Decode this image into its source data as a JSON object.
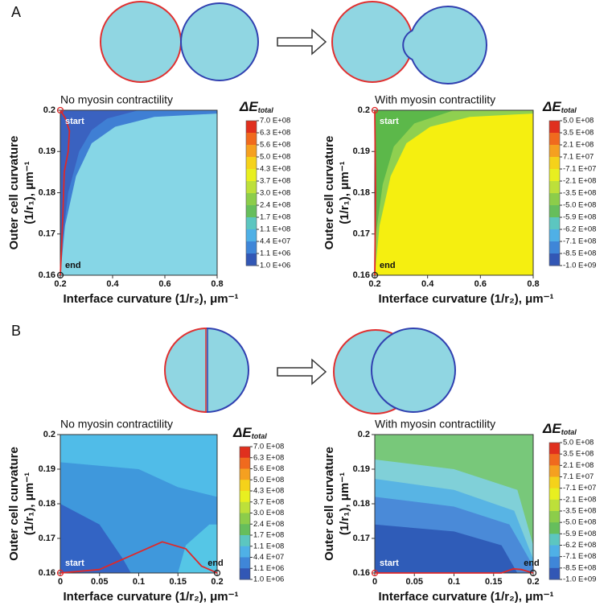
{
  "panel_labels": [
    "A",
    "B"
  ],
  "chart_data": [
    {
      "type": "contour",
      "title": "No myosin contractility",
      "xlabel": "Interface curvature (1/r₂), μm⁻¹",
      "ylabel": [
        "Outer cell curvature",
        "(1/r₁), μm⁻¹"
      ],
      "xlim": [
        0.2,
        0.8
      ],
      "xticks": [
        0.2,
        0.4,
        0.6,
        0.8
      ],
      "ylim": [
        0.16,
        0.2
      ],
      "yticks": [
        0.16,
        0.17,
        0.18,
        0.19,
        0.2
      ],
      "colorbar_title": "ΔE",
      "colorbar_subscript": "total",
      "colorbar_ticks": [
        {
          "value": 700000000,
          "label": "7.0 E+08"
        },
        {
          "value": 630000000,
          "label": "6.3 E+08"
        },
        {
          "value": 560000000,
          "label": "5.6 E+08"
        },
        {
          "value": 500000000,
          "label": "5.0 E+08"
        },
        {
          "value": 430000000,
          "label": "4.3 E+08"
        },
        {
          "value": 370000000,
          "label": "3.7 E+08"
        },
        {
          "value": 300000000,
          "label": "3.0 E+08"
        },
        {
          "value": 240000000,
          "label": "2.4 E+08"
        },
        {
          "value": 170000000,
          "label": "1.7 E+08"
        },
        {
          "value": 110000000,
          "label": "1.1 E+08"
        },
        {
          "value": 44000000,
          "label": "4.4 E+07"
        },
        {
          "value": 1100000,
          "label": "1.1 E+06"
        },
        {
          "value": 1000000,
          "label": "1.0 E+06"
        }
      ],
      "colorbar_colors": [
        "#e0301e",
        "#f06a1e",
        "#f5a020",
        "#f5d21a",
        "#e8ef20",
        "#bde03a",
        "#8ccd4a",
        "#66be5c",
        "#5cc6c0",
        "#4fb0e6",
        "#3f86d8",
        "#3257b5"
      ],
      "series": [
        {
          "color": "#e02828",
          "x": [
            0.2,
            0.22,
            0.235,
            0.23,
            0.215,
            0.21,
            0.205,
            0.2
          ],
          "values": [
            0.2,
            0.198,
            0.195,
            0.19,
            0.185,
            0.175,
            0.167,
            0.16
          ]
        }
      ],
      "annotations": [
        "start",
        "end"
      ]
    },
    {
      "type": "contour",
      "title": "With myosin contractility",
      "xlabel": "Interface curvature (1/r₂), μm⁻¹",
      "ylabel": [
        "Outer cell curvature",
        "(1/r₁), μm⁻¹"
      ],
      "xlim": [
        0.2,
        0.8
      ],
      "xticks": [
        0.2,
        0.4,
        0.6,
        0.8
      ],
      "ylim": [
        0.16,
        0.2
      ],
      "yticks": [
        0.16,
        0.17,
        0.18,
        0.19,
        0.2
      ],
      "colorbar_title": "ΔE",
      "colorbar_subscript": "total",
      "colorbar_ticks": [
        {
          "value": 500000000,
          "label": "5.0 E+08"
        },
        {
          "value": 350000000,
          "label": "3.5 E+08"
        },
        {
          "value": 210000000,
          "label": "2.1 E+08"
        },
        {
          "value": 71000000,
          "label": "7.1 E+07"
        },
        {
          "value": -71000000,
          "label": "-7.1 E+07"
        },
        {
          "value": -210000000,
          "label": "-2.1 E+08"
        },
        {
          "value": -350000000,
          "label": "-3.5 E+08"
        },
        {
          "value": -500000000,
          "label": "-5.0 E+08"
        },
        {
          "value": -590000000,
          "label": "-5.9 E+08"
        },
        {
          "value": -620000000,
          "label": "-6.2 E+08"
        },
        {
          "value": -710000000,
          "label": "-7.1 E+08"
        },
        {
          "value": -850000000,
          "label": "-8.5 E+08"
        },
        {
          "value": -1000000000,
          "label": "-1.0 E+09"
        }
      ],
      "colorbar_colors": [
        "#e0301e",
        "#f06a1e",
        "#f5a020",
        "#f5d21a",
        "#e8ef20",
        "#bde03a",
        "#8ccd4a",
        "#66be5c",
        "#5cc6c0",
        "#4fb0e6",
        "#3f86d8",
        "#3257b5"
      ],
      "series": [
        {
          "color": "#e02828",
          "x": [
            0.2,
            0.203,
            0.2
          ],
          "values": [
            0.2,
            0.18,
            0.16
          ]
        }
      ],
      "annotations": [
        "start",
        "end"
      ]
    },
    {
      "type": "contour",
      "title": "No myosin contractility",
      "xlabel": "Interface curvature (1/r₂), μm⁻¹",
      "ylabel": [
        "Outer cell curvature",
        "(1/r₁), μm⁻¹"
      ],
      "xlim": [
        0,
        0.2
      ],
      "xticks": [
        0,
        0.05,
        0.1,
        0.15,
        0.2
      ],
      "ylim": [
        0.16,
        0.2
      ],
      "yticks": [
        0.16,
        0.17,
        0.18,
        0.19,
        0.2
      ],
      "colorbar_title": "ΔE",
      "colorbar_subscript": "total",
      "colorbar_ticks": [
        {
          "value": 700000000,
          "label": "7.0 E+08"
        },
        {
          "value": 630000000,
          "label": "6.3 E+08"
        },
        {
          "value": 560000000,
          "label": "5.6 E+08"
        },
        {
          "value": 500000000,
          "label": "5.0 E+08"
        },
        {
          "value": 430000000,
          "label": "4.3 E+08"
        },
        {
          "value": 370000000,
          "label": "3.7 E+08"
        },
        {
          "value": 300000000,
          "label": "3.0 E+08"
        },
        {
          "value": 240000000,
          "label": "2.4 E+08"
        },
        {
          "value": 170000000,
          "label": "1.7 E+08"
        },
        {
          "value": 110000000,
          "label": "1.1 E+08"
        },
        {
          "value": 44000000,
          "label": "4.4 E+07"
        },
        {
          "value": 1100000,
          "label": "1.1 E+06"
        },
        {
          "value": 1000000,
          "label": "1.0 E+06"
        }
      ],
      "colorbar_colors": [
        "#e0301e",
        "#f06a1e",
        "#f5a020",
        "#f5d21a",
        "#e8ef20",
        "#bde03a",
        "#8ccd4a",
        "#66be5c",
        "#5cc6c0",
        "#4fb0e6",
        "#3f86d8",
        "#3257b5"
      ],
      "series": [
        {
          "color": "#e02828",
          "x": [
            0,
            0.05,
            0.1,
            0.13,
            0.16,
            0.18,
            0.2
          ],
          "values": [
            0.16,
            0.161,
            0.166,
            0.169,
            0.167,
            0.162,
            0.16
          ]
        }
      ],
      "annotations": [
        "start",
        "end"
      ]
    },
    {
      "type": "contour",
      "title": "With myosin contractility",
      "xlabel": "Interface curvature (1/r₂), μm⁻¹",
      "ylabel": [
        "Outer cell curvature",
        "(1/r₁), μm⁻¹"
      ],
      "xlim": [
        0,
        0.2
      ],
      "xticks": [
        0,
        0.05,
        0.1,
        0.15,
        0.2
      ],
      "ylim": [
        0.16,
        0.2
      ],
      "yticks": [
        0.16,
        0.17,
        0.18,
        0.19,
        0.2
      ],
      "colorbar_title": "ΔE",
      "colorbar_subscript": "total",
      "colorbar_ticks": [
        {
          "value": 500000000,
          "label": "5.0 E+08"
        },
        {
          "value": 350000000,
          "label": "3.5 E+08"
        },
        {
          "value": 210000000,
          "label": "2.1 E+08"
        },
        {
          "value": 71000000,
          "label": "7.1 E+07"
        },
        {
          "value": -71000000,
          "label": "-7.1 E+07"
        },
        {
          "value": -210000000,
          "label": "-2.1 E+08"
        },
        {
          "value": -350000000,
          "label": "-3.5 E+08"
        },
        {
          "value": -500000000,
          "label": "-5.0 E+08"
        },
        {
          "value": -590000000,
          "label": "-5.9 E+08"
        },
        {
          "value": -620000000,
          "label": "-6.2 E+08"
        },
        {
          "value": -710000000,
          "label": "-7.1 E+08"
        },
        {
          "value": -850000000,
          "label": "-8.5 E+08"
        },
        {
          "value": -1000000000,
          "label": "-1.0 E+09"
        }
      ],
      "colorbar_colors": [
        "#e0301e",
        "#f06a1e",
        "#f5a020",
        "#f5d21a",
        "#e8ef20",
        "#bde03a",
        "#8ccd4a",
        "#66be5c",
        "#5cc6c0",
        "#4fb0e6",
        "#3f86d8",
        "#3257b5"
      ],
      "series": [
        {
          "color": "#e02828",
          "x": [
            0,
            0.16,
            0.175,
            0.185,
            0.2
          ],
          "values": [
            0.16,
            0.16,
            0.1612,
            0.161,
            0.16
          ]
        }
      ],
      "annotations": [
        "start",
        "end"
      ]
    }
  ]
}
